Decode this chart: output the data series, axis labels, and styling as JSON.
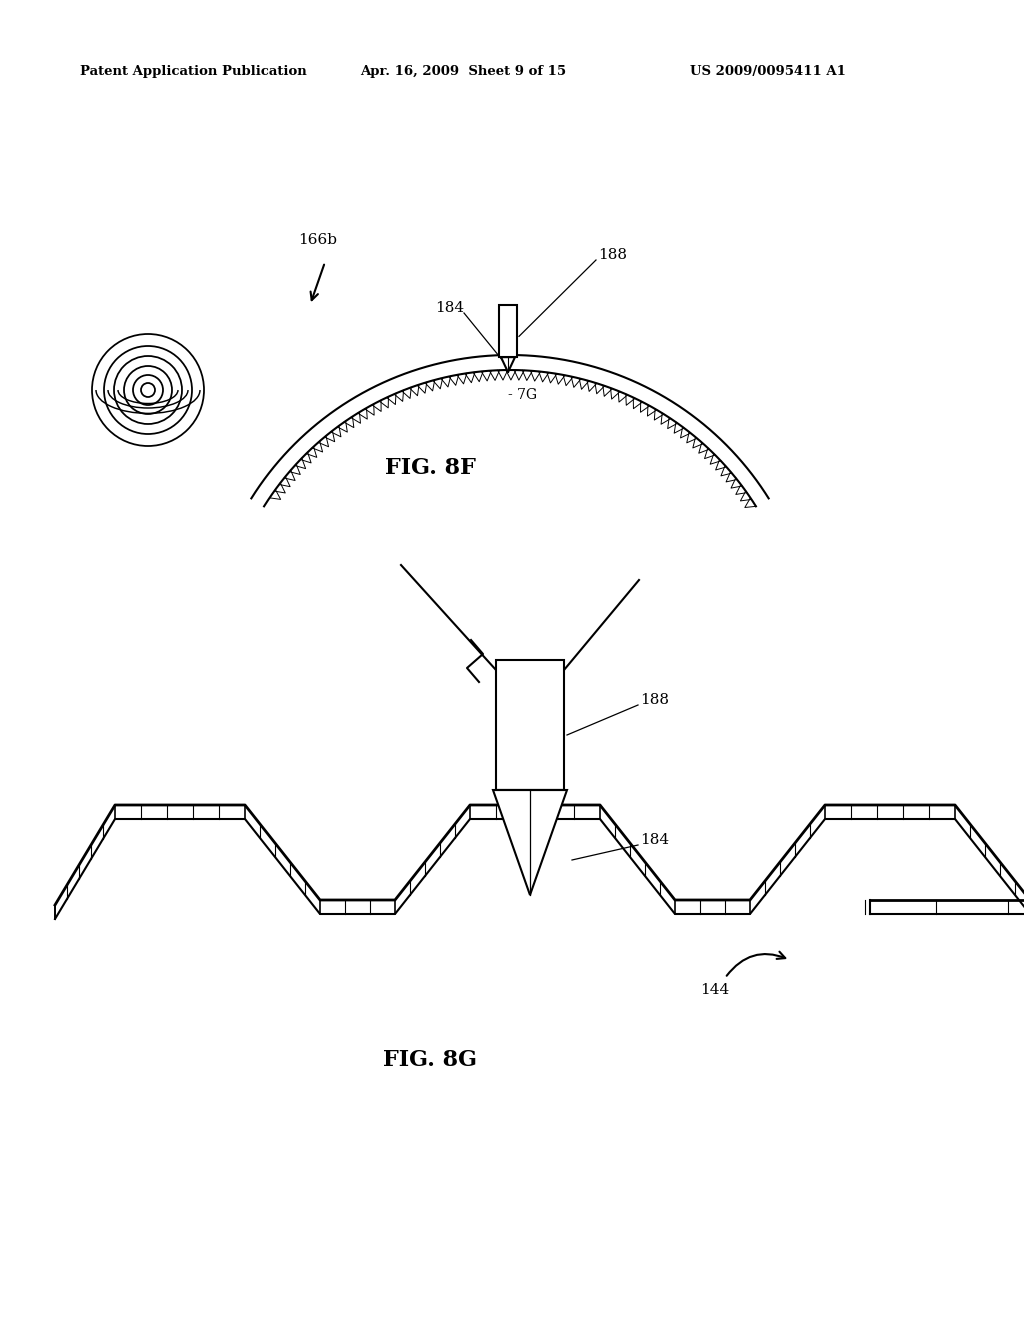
{
  "bg_color": "#ffffff",
  "header_left": "Patent Application Publication",
  "header_center": "Apr. 16, 2009  Sheet 9 of 15",
  "header_right": "US 2009/0095411 A1",
  "fig8f_label": "FIG. 8F",
  "fig8g_label": "FIG. 8G",
  "label_166b": "166b",
  "label_184_top": "184",
  "label_188_top": "188",
  "label_7G": "- 7G",
  "label_184_bot": "184",
  "label_188_bot": "188",
  "label_144": "144",
  "line_color": "#000000"
}
